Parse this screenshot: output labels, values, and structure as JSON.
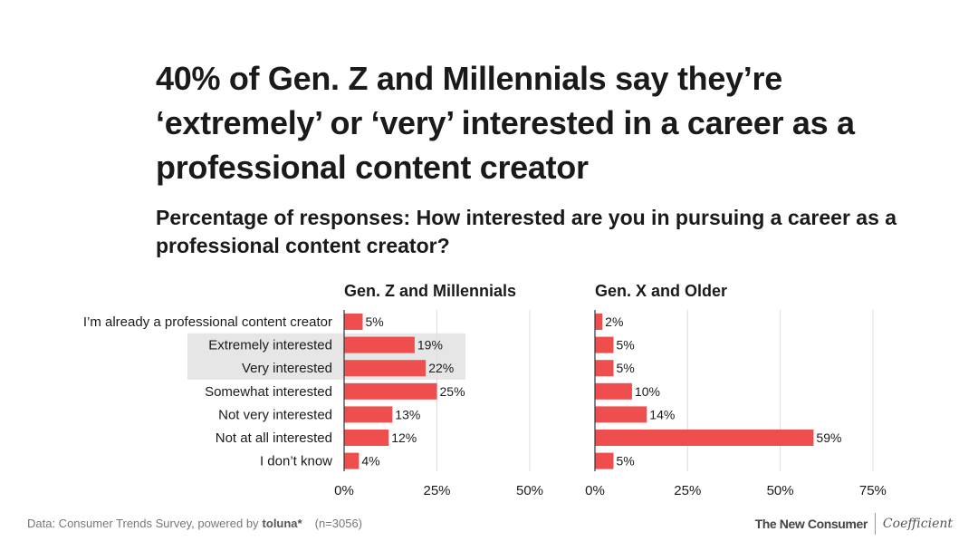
{
  "title": "40% of Gen. Z and Millennials say they’re ‘extremely’ or ‘very’ interested in a career as a professional content creator",
  "subtitle": "Percentage of responses: How interested are you in pursuing a career as a professional content creator?",
  "colors": {
    "bar": "#ef4e4e",
    "highlight": "#e6e6e6",
    "grid": "#dddddd",
    "axis": "#333333",
    "text": "#1a1a1a"
  },
  "chart_data": [
    {
      "type": "bar",
      "orientation": "horizontal",
      "title": "Gen. Z and Millennials",
      "categories": [
        "I’m already a professional content creator",
        "Extremely interested",
        "Very interested",
        "Somewhat interested",
        "Not very interested",
        "Not at all interested",
        "I don’t know"
      ],
      "values": [
        5,
        19,
        22,
        25,
        13,
        12,
        4
      ],
      "value_labels": [
        "5%",
        "19%",
        "22%",
        "25%",
        "13%",
        "12%",
        "4%"
      ],
      "highlighted_categories": [
        "Extremely interested",
        "Very interested"
      ],
      "xlim": [
        0,
        50
      ],
      "ticks": [
        0,
        25,
        50
      ],
      "tick_labels": [
        "0%",
        "25%",
        "50%"
      ],
      "grid": true
    },
    {
      "type": "bar",
      "orientation": "horizontal",
      "title": "Gen. X and Older",
      "categories": [
        "I’m already a professional content creator",
        "Extremely interested",
        "Very interested",
        "Somewhat interested",
        "Not very interested",
        "Not at all interested",
        "I don’t know"
      ],
      "values": [
        2,
        5,
        5,
        10,
        14,
        59,
        5
      ],
      "value_labels": [
        "2%",
        "5%",
        "5%",
        "10%",
        "14%",
        "59%",
        "5%"
      ],
      "xlim": [
        0,
        75
      ],
      "ticks": [
        0,
        25,
        50,
        75
      ],
      "tick_labels": [
        "0%",
        "25%",
        "50%",
        "75%"
      ],
      "grid": true
    }
  ],
  "footer": {
    "source": "Data: Consumer Trends Survey, powered by",
    "source_brand": "toluna*",
    "sample": "(n=3056)",
    "brand_left": "The New Consumer",
    "brand_right": "Coefficient"
  }
}
